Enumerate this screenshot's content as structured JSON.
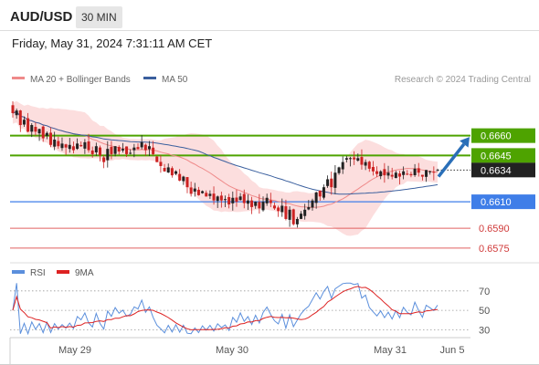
{
  "header": {
    "symbol": "AUD/USD",
    "timeframe": "30 MIN",
    "datetime": "Friday, May 31, 2024 7:31:11 AM CET"
  },
  "colors": {
    "ma20": "#ef8a8a",
    "band_fill": "#fbd3d3",
    "ma50": "#3a5f9e",
    "resistance": "#4ea300",
    "pivot": "#3f7ee8",
    "support": "#e06060",
    "price_label": "#222222",
    "arrow": "#2a6fb8",
    "candle_up": "#222222",
    "candle_down": "#cc2222",
    "rsi": "#5b8fdc",
    "rsi_ma": "#dd2222"
  },
  "chart_data": [
    {
      "type": "candlestick",
      "legend": [
        {
          "label": "MA 20 + Bollinger Bands",
          "color": "#ef8a8a"
        },
        {
          "label": "MA 50",
          "color": "#3a5f9e"
        }
      ],
      "credit": "Research © 2024 Trading Central",
      "x_ticks": [
        "May 29",
        "May 30",
        "May 31",
        "Jun 5"
      ],
      "ylim": [
        0.6568,
        0.6697
      ],
      "levels": [
        {
          "value": 0.666,
          "label": "0.6660",
          "kind": "resistance",
          "style": "boxed"
        },
        {
          "value": 0.6645,
          "label": "0.6645",
          "kind": "resistance",
          "style": "boxed"
        },
        {
          "value": 0.6634,
          "label": "0.6634",
          "kind": "last",
          "style": "boxed"
        },
        {
          "value": 0.661,
          "label": "0.6610",
          "kind": "pivot",
          "style": "boxed"
        },
        {
          "value": 0.659,
          "label": "0.6590",
          "kind": "support",
          "style": "text"
        },
        {
          "value": 0.6575,
          "label": "0.6575",
          "kind": "support",
          "style": "text"
        }
      ],
      "forecast_arrow": {
        "from": 0.6629,
        "to": 0.6659,
        "direction": "up"
      },
      "closes": [
        0.6677,
        0.6679,
        0.6668,
        0.6672,
        0.6663,
        0.6668,
        0.6663,
        0.6665,
        0.6658,
        0.6662,
        0.6653,
        0.6657,
        0.6652,
        0.6654,
        0.6651,
        0.6653,
        0.6649,
        0.6654,
        0.6652,
        0.6655,
        0.6649,
        0.6646,
        0.6652,
        0.6645,
        0.664,
        0.665,
        0.6646,
        0.6652,
        0.6648,
        0.665,
        0.6646,
        0.6647,
        0.6651,
        0.665,
        0.6655,
        0.6649,
        0.6652,
        0.6646,
        0.664,
        0.6637,
        0.6633,
        0.6636,
        0.663,
        0.6633,
        0.6626,
        0.6629,
        0.6621,
        0.6616,
        0.662,
        0.6615,
        0.6618,
        0.6614,
        0.6616,
        0.6611,
        0.6614,
        0.6611,
        0.6612,
        0.6608,
        0.6613,
        0.661,
        0.6614,
        0.6609,
        0.6611,
        0.6606,
        0.661,
        0.6605,
        0.661,
        0.6613,
        0.6609,
        0.6605,
        0.6603,
        0.6607,
        0.6597,
        0.6604,
        0.6593,
        0.6597,
        0.6601,
        0.6604,
        0.6606,
        0.6611,
        0.6617,
        0.6614,
        0.6621,
        0.6627,
        0.6621,
        0.6632,
        0.6636,
        0.664,
        0.6643,
        0.6643,
        0.6642,
        0.6643,
        0.6638,
        0.664,
        0.6635,
        0.6633,
        0.6631,
        0.6633,
        0.663,
        0.6632,
        0.6629,
        0.6632,
        0.6629,
        0.6633,
        0.6631,
        0.663,
        0.6635,
        0.6632,
        0.6629,
        0.6634,
        0.6633,
        0.6632,
        0.6634
      ]
    },
    {
      "type": "line",
      "title": "RSI",
      "legend": [
        {
          "label": "RSI",
          "color": "#5b8fdc"
        },
        {
          "label": "9MA",
          "color": "#dd2222"
        }
      ],
      "y_ticks": [
        70,
        50,
        30
      ],
      "ylim": [
        22,
        82
      ]
    }
  ]
}
